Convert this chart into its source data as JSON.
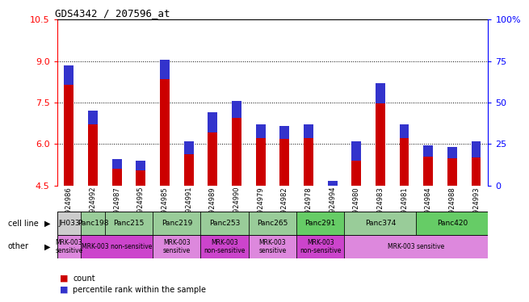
{
  "title": "GDS4342 / 207596_at",
  "samples": [
    "GSM924986",
    "GSM924992",
    "GSM924987",
    "GSM924995",
    "GSM924985",
    "GSM924991",
    "GSM924989",
    "GSM924990",
    "GSM924979",
    "GSM924982",
    "GSM924978",
    "GSM924994",
    "GSM924980",
    "GSM924983",
    "GSM924981",
    "GSM924984",
    "GSM924988",
    "GSM924993"
  ],
  "count_values": [
    8.85,
    7.2,
    5.45,
    5.4,
    9.05,
    6.1,
    7.15,
    7.55,
    6.7,
    6.65,
    6.7,
    4.65,
    6.1,
    8.2,
    6.7,
    5.95,
    5.9,
    6.1
  ],
  "percentile_values": [
    12,
    8,
    6,
    6,
    12,
    8,
    12,
    10,
    8,
    8,
    8,
    4,
    12,
    12,
    8,
    7,
    7,
    10
  ],
  "ylim_left": [
    4.5,
    10.5
  ],
  "ylim_right": [
    0,
    100
  ],
  "yticks_left": [
    4.5,
    6.0,
    7.5,
    9.0,
    10.5
  ],
  "yticks_right": [
    0,
    25,
    50,
    75,
    100
  ],
  "ytick_dotted": [
    6.0,
    7.5,
    9.0
  ],
  "bar_color_red": "#cc0000",
  "bar_color_blue": "#3333cc",
  "bar_width": 0.4,
  "cell_lines": [
    {
      "name": "JH033",
      "start": 0,
      "end": 1,
      "color": "#cccccc"
    },
    {
      "name": "Panc198",
      "start": 1,
      "end": 2,
      "color": "#99cc99"
    },
    {
      "name": "Panc215",
      "start": 2,
      "end": 4,
      "color": "#99cc99"
    },
    {
      "name": "Panc219",
      "start": 4,
      "end": 6,
      "color": "#99cc99"
    },
    {
      "name": "Panc253",
      "start": 6,
      "end": 8,
      "color": "#99cc99"
    },
    {
      "name": "Panc265",
      "start": 8,
      "end": 10,
      "color": "#99cc99"
    },
    {
      "name": "Panc291",
      "start": 10,
      "end": 12,
      "color": "#66cc66"
    },
    {
      "name": "Panc374",
      "start": 12,
      "end": 15,
      "color": "#99cc99"
    },
    {
      "name": "Panc420",
      "start": 15,
      "end": 18,
      "color": "#66cc66"
    }
  ],
  "other_groups": [
    {
      "name": "MRK-003\nsensitive",
      "start": 0,
      "end": 1,
      "color": "#dd88dd"
    },
    {
      "name": "MRK-003 non-sensitive",
      "start": 1,
      "end": 4,
      "color": "#cc44cc"
    },
    {
      "name": "MRK-003\nsensitive",
      "start": 4,
      "end": 6,
      "color": "#dd88dd"
    },
    {
      "name": "MRK-003\nnon-sensitive",
      "start": 6,
      "end": 8,
      "color": "#cc44cc"
    },
    {
      "name": "MRK-003\nsensitive",
      "start": 8,
      "end": 10,
      "color": "#dd88dd"
    },
    {
      "name": "MRK-003\nnon-sensitive",
      "start": 10,
      "end": 12,
      "color": "#cc44cc"
    },
    {
      "name": "MRK-003 sensitive",
      "start": 12,
      "end": 18,
      "color": "#dd88dd"
    }
  ],
  "background_color": "#ffffff"
}
